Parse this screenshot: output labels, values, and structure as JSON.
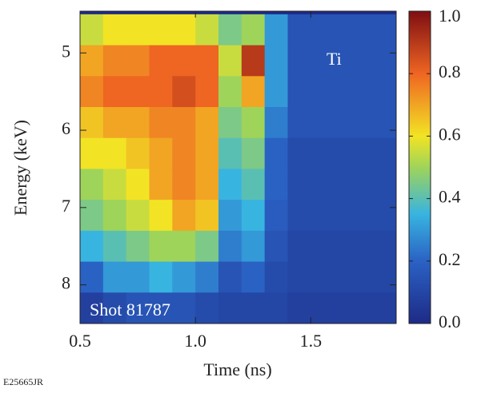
{
  "chart_data": {
    "type": "heatmap",
    "xlabel": "Time (ns)",
    "ylabel": "Energy (keV)",
    "x": [
      0.55,
      0.65,
      0.75,
      0.85,
      0.95,
      1.05,
      1.15,
      1.25,
      1.35,
      1.45,
      1.55,
      1.65,
      1.75,
      1.85
    ],
    "y": [
      4.7,
      5.1,
      5.5,
      5.9,
      6.3,
      6.7,
      7.1,
      7.5,
      7.9,
      8.3
    ],
    "values": [
      [
        0.55,
        0.6,
        0.6,
        0.6,
        0.6,
        0.55,
        0.45,
        0.5,
        0.3,
        0.15,
        0.15,
        0.15,
        0.15,
        0.15
      ],
      [
        0.7,
        0.75,
        0.75,
        0.8,
        0.8,
        0.8,
        0.55,
        0.9,
        0.3,
        0.15,
        0.15,
        0.15,
        0.15,
        0.15
      ],
      [
        0.75,
        0.8,
        0.8,
        0.8,
        0.85,
        0.8,
        0.5,
        0.7,
        0.3,
        0.15,
        0.15,
        0.15,
        0.15,
        0.15
      ],
      [
        0.65,
        0.7,
        0.7,
        0.75,
        0.75,
        0.7,
        0.45,
        0.5,
        0.25,
        0.15,
        0.15,
        0.15,
        0.15,
        0.15
      ],
      [
        0.6,
        0.6,
        0.65,
        0.7,
        0.75,
        0.7,
        0.4,
        0.45,
        0.2,
        0.12,
        0.12,
        0.12,
        0.12,
        0.12
      ],
      [
        0.5,
        0.55,
        0.6,
        0.7,
        0.75,
        0.7,
        0.35,
        0.4,
        0.2,
        0.12,
        0.12,
        0.12,
        0.12,
        0.12
      ],
      [
        0.45,
        0.5,
        0.55,
        0.6,
        0.7,
        0.65,
        0.3,
        0.35,
        0.18,
        0.12,
        0.12,
        0.12,
        0.12,
        0.12
      ],
      [
        0.35,
        0.4,
        0.45,
        0.5,
        0.5,
        0.45,
        0.25,
        0.3,
        0.15,
        0.1,
        0.1,
        0.1,
        0.1,
        0.1
      ],
      [
        0.2,
        0.3,
        0.3,
        0.35,
        0.3,
        0.25,
        0.15,
        0.2,
        0.12,
        0.1,
        0.1,
        0.1,
        0.1,
        0.1
      ],
      [
        0.08,
        0.12,
        0.15,
        0.15,
        0.15,
        0.12,
        0.1,
        0.1,
        0.1,
        0.08,
        0.08,
        0.08,
        0.08,
        0.08
      ]
    ],
    "xlim": [
      0.5,
      1.87
    ],
    "ylim": [
      4.46,
      8.5
    ],
    "y_inverted": true,
    "xticks": [
      0.5,
      {
        "value": 1,
        "label": "1.0"
      },
      1.5
    ],
    "yticks": [
      5,
      6,
      7,
      8
    ],
    "clim": [
      0,
      1
    ],
    "cticks": [
      {
        "value": 0,
        "label": "0.0"
      },
      0.2,
      0.4,
      0.6,
      0.8,
      {
        "value": 1,
        "label": "1.0"
      }
    ],
    "colorscale": [
      [
        0,
        "#1e2a86"
      ],
      [
        0.2,
        "#2a62c4"
      ],
      [
        0.35,
        "#38b4e0"
      ],
      [
        0.5,
        "#9fd45a"
      ],
      [
        0.6,
        "#f2e424"
      ],
      [
        0.8,
        "#ef6522"
      ],
      [
        1,
        "#7e0e12"
      ]
    ],
    "annotations": [
      "Ti",
      "Shot 81787"
    ],
    "figure_id": "E25665JR"
  }
}
